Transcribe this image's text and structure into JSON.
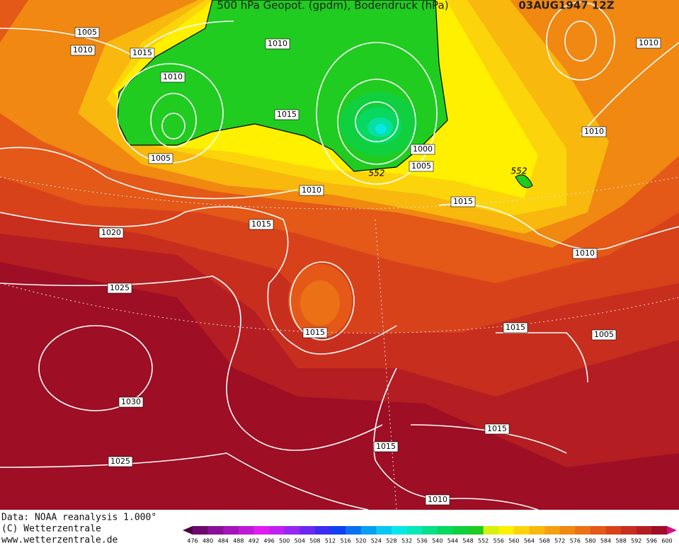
{
  "header": {
    "title": "500 hPa Geopot. (gpdm), Bodendruck (hPa)",
    "date": "03AUG1947 12Z"
  },
  "isobar_labels": [
    "1005",
    "1010",
    "1015",
    "1010",
    "1005",
    "1010",
    "1015",
    "1000",
    "1005",
    "1010",
    "1015",
    "1015",
    "1010",
    "1010",
    "1010",
    "1020",
    "1025",
    "1015",
    "1015",
    "1005",
    "1030",
    "1025",
    "1015",
    "1015",
    "1010"
  ],
  "geopotential_labels": [
    "552",
    "552"
  ],
  "footer": {
    "source": "Data: NOAA reanalysis 1.000°",
    "copyright": "(C) Wetterzentrale",
    "url": "www.wetterzentrale.de"
  },
  "colorbar": {
    "labels": [
      476,
      480,
      484,
      488,
      492,
      496,
      500,
      504,
      508,
      512,
      516,
      520,
      524,
      528,
      532,
      536,
      540,
      544,
      548,
      552,
      556,
      560,
      564,
      568,
      572,
      576,
      580,
      584,
      588,
      592,
      596,
      600
    ],
    "colors": [
      "#4b0042",
      "#6e0a6e",
      "#8a109a",
      "#a414b8",
      "#c018d8",
      "#e01cf0",
      "#c020f0",
      "#9428f0",
      "#6a28f0",
      "#3a2cf0",
      "#1040f0",
      "#0a70f0",
      "#08a0f0",
      "#08c8f0",
      "#06e8e8",
      "#06e8b8",
      "#06e088",
      "#08d860",
      "#10d040",
      "#20cc20",
      "#d8f010",
      "#fff000",
      "#fcd40c",
      "#f8b80e",
      "#f4a010",
      "#f08812",
      "#ec7016",
      "#e45818",
      "#d8421a",
      "#c82e1e",
      "#b41e22",
      "#9e0e24",
      "#d0108a"
    ]
  }
}
